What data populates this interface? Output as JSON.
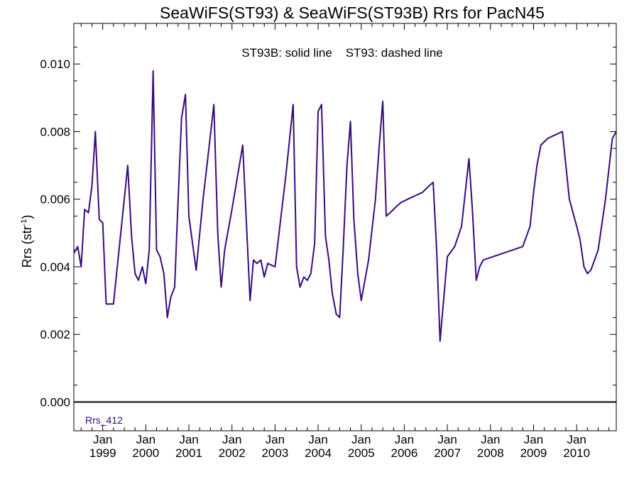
{
  "chart_data": {
    "type": "line",
    "title": "SeaWiFS(ST93) & SeaWiFS(ST93B)  Rrs for PacN45",
    "annotation": "ST93B: solid line    ST93: dashed line",
    "ylabel_main": "Rrs (str",
    "ylabel_sup": "-1",
    "ylabel_close": ")",
    "ylim": [
      -0.00085,
      0.0112
    ],
    "x_range": [
      1998.33,
      2010.92
    ],
    "yticks": [
      0.0,
      0.002,
      0.004,
      0.006,
      0.008,
      0.01
    ],
    "ytick_labels": [
      "0.000",
      "0.002",
      "0.004",
      "0.006",
      "0.008",
      "0.010"
    ],
    "xticks_top": [
      "Jan",
      "Jan",
      "Jan",
      "Jan",
      "Jan",
      "Jan",
      "Jan",
      "Jan",
      "Jan",
      "Jan",
      "Jan",
      "Jan"
    ],
    "xticks_bottom": [
      "1999",
      "2000",
      "2001",
      "2002",
      "2003",
      "2004",
      "2005",
      "2006",
      "2007",
      "2008",
      "2009",
      "2010"
    ],
    "xtick_values": [
      1999,
      2000,
      2001,
      2002,
      2003,
      2004,
      2005,
      2006,
      2007,
      2008,
      2009,
      2010
    ],
    "zero_line": true,
    "legend_position": "bottom-left",
    "series": [
      {
        "name": "Rrs_412",
        "color": "#3a0a7d",
        "x": [
          1998.33,
          1998.42,
          1998.5,
          1998.58,
          1998.67,
          1998.75,
          1998.83,
          1998.92,
          1999.0,
          1999.08,
          1999.25,
          1999.42,
          1999.58,
          1999.67,
          1999.75,
          1999.83,
          1999.92,
          2000.0,
          2000.08,
          2000.17,
          2000.25,
          2000.33,
          2000.42,
          2000.5,
          2000.58,
          2000.67,
          2000.75,
          2000.83,
          2000.92,
          2001.0,
          2001.17,
          2001.33,
          2001.5,
          2001.58,
          2001.67,
          2001.75,
          2001.83,
          2002.0,
          2002.25,
          2002.42,
          2002.5,
          2002.58,
          2002.67,
          2002.75,
          2002.83,
          2003.0,
          2003.25,
          2003.42,
          2003.5,
          2003.58,
          2003.67,
          2003.75,
          2003.83,
          2003.92,
          2004.0,
          2004.08,
          2004.17,
          2004.25,
          2004.33,
          2004.42,
          2004.5,
          2004.58,
          2004.67,
          2004.75,
          2004.83,
          2004.92,
          2005.0,
          2005.17,
          2005.33,
          2005.42,
          2005.5,
          2005.58,
          2005.67,
          2005.75,
          2005.83,
          2005.92,
          2006.08,
          2006.25,
          2006.42,
          2006.5,
          2006.58,
          2006.67,
          2006.75,
          2006.83,
          2007.0,
          2007.17,
          2007.33,
          2007.5,
          2007.58,
          2007.67,
          2007.75,
          2007.83,
          2008.75,
          2008.92,
          2009.0,
          2009.08,
          2009.17,
          2009.33,
          2009.5,
          2009.67,
          2009.83,
          2010.0,
          2010.08,
          2010.17,
          2010.25,
          2010.33,
          2010.5,
          2010.67,
          2010.83,
          2010.92
        ],
        "values": [
          0.0044,
          0.0046,
          0.004,
          0.0057,
          0.0056,
          0.0064,
          0.008,
          0.0054,
          0.0053,
          0.0029,
          0.0029,
          0.005,
          0.007,
          0.0049,
          0.0038,
          0.0036,
          0.004,
          0.0035,
          0.0045,
          0.0098,
          0.0045,
          0.0043,
          0.0038,
          0.0025,
          0.0031,
          0.0034,
          0.006,
          0.0084,
          0.0091,
          0.0055,
          0.0039,
          0.006,
          0.0079,
          0.0088,
          0.005,
          0.0034,
          0.0045,
          0.0057,
          0.0076,
          0.003,
          0.0042,
          0.0041,
          0.0042,
          0.0037,
          0.0041,
          0.004,
          0.0067,
          0.0088,
          0.004,
          0.0034,
          0.0037,
          0.0036,
          0.0038,
          0.0047,
          0.0086,
          0.0088,
          0.0049,
          0.0042,
          0.0032,
          0.0026,
          0.0025,
          0.0045,
          0.007,
          0.0083,
          0.0054,
          0.0038,
          0.003,
          0.0042,
          0.006,
          0.0076,
          0.0089,
          0.0055,
          0.0056,
          0.0057,
          0.0058,
          0.0059,
          0.006,
          0.0061,
          0.0062,
          0.0063,
          0.0064,
          0.0065,
          0.0045,
          0.0018,
          0.0043,
          0.0046,
          0.0052,
          0.0072,
          0.0057,
          0.0036,
          0.004,
          0.0042,
          0.0046,
          0.0052,
          0.0062,
          0.007,
          0.0076,
          0.0078,
          0.0079,
          0.008,
          0.006,
          0.0052,
          0.0048,
          0.004,
          0.0038,
          0.0039,
          0.0045,
          0.006,
          0.0078,
          0.008
        ]
      }
    ]
  }
}
